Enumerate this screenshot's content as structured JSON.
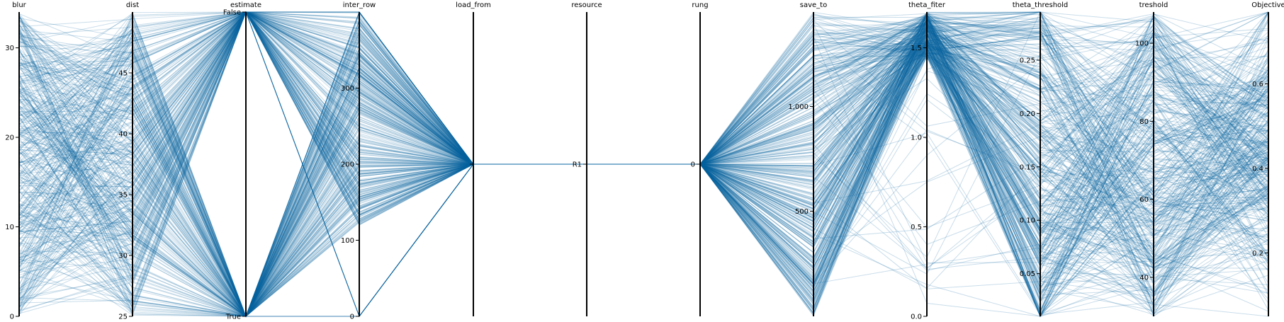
{
  "chart_data": {
    "type": "parallel_coordinates",
    "line_color": "#0b64a0",
    "axes": [
      {
        "name": "blur",
        "kind": "numeric",
        "range": [
          0,
          34
        ],
        "ticks": [
          0,
          10,
          20,
          30
        ],
        "labels": [
          "0",
          "10",
          "20",
          "30"
        ]
      },
      {
        "name": "dist",
        "kind": "numeric",
        "range": [
          25,
          50
        ],
        "ticks": [
          25,
          30,
          35,
          40,
          45
        ],
        "labels": [
          "25",
          "30",
          "35",
          "40",
          "45"
        ]
      },
      {
        "name": "estimate",
        "kind": "categorical",
        "categories": [
          "True",
          "False"
        ],
        "labels": [
          "True",
          "False"
        ]
      },
      {
        "name": "inter_row",
        "kind": "numeric",
        "range": [
          0,
          400
        ],
        "ticks": [
          0,
          100,
          200,
          300
        ],
        "labels": [
          "0",
          "100",
          "200",
          "300"
        ]
      },
      {
        "name": "load_from",
        "kind": "categorical",
        "categories": [
          ""
        ],
        "labels": [
          ""
        ]
      },
      {
        "name": "resource",
        "kind": "categorical",
        "categories": [
          "R1"
        ],
        "labels": [
          "R1"
        ]
      },
      {
        "name": "rung",
        "kind": "numeric",
        "range": [
          -1,
          1
        ],
        "ticks": [
          0
        ],
        "labels": [
          "0"
        ]
      },
      {
        "name": "save_to",
        "kind": "numeric",
        "range": [
          0,
          1450
        ],
        "ticks": [
          500,
          1000
        ],
        "labels": [
          "500",
          "1,000"
        ]
      },
      {
        "name": "theta_fiter",
        "kind": "numeric",
        "range": [
          0,
          1.7
        ],
        "ticks": [
          0,
          0.5,
          1.0,
          1.5
        ],
        "labels": [
          "0.0",
          "0.5",
          "1.0",
          "1.5"
        ]
      },
      {
        "name": "theta_threshold",
        "kind": "numeric",
        "range": [
          0.01,
          0.295
        ],
        "ticks": [
          0.05,
          0.1,
          0.15,
          0.2,
          0.25
        ],
        "labels": [
          "0.05",
          "0.10",
          "0.15",
          "0.20",
          "0.25"
        ]
      },
      {
        "name": "treshold",
        "kind": "numeric",
        "range": [
          30,
          108
        ],
        "ticks": [
          40,
          60,
          80,
          100
        ],
        "labels": [
          "40",
          "60",
          "80",
          "100"
        ]
      },
      {
        "name": "Objective",
        "kind": "numeric",
        "range": [
          0.05,
          0.77
        ],
        "ticks": [
          0.2,
          0.4,
          0.6
        ],
        "labels": [
          "0.2",
          "0.4",
          "0.6"
        ]
      }
    ]
  }
}
